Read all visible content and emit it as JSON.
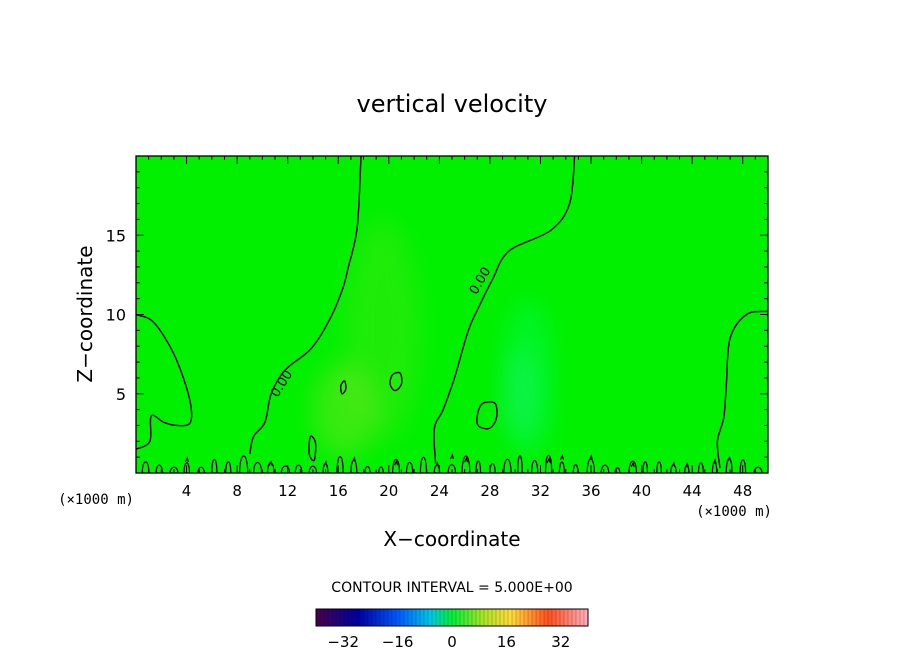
{
  "chart_data": {
    "type": "heatmap",
    "title": "vertical velocity",
    "xlabel": "X−coordinate",
    "ylabel": "Z−coordinate",
    "x_units_left": "(×1000 m)",
    "x_units_right": "(×1000 m)",
    "xlim": [
      0,
      50
    ],
    "ylim": [
      0,
      20
    ],
    "x_ticks": [
      4,
      8,
      12,
      16,
      20,
      24,
      28,
      32,
      36,
      40,
      44,
      48
    ],
    "x_tick_labels": [
      "4",
      "8",
      "12",
      "16",
      "20",
      "24",
      "28",
      "32",
      "36",
      "40",
      "44",
      "48"
    ],
    "y_ticks": [
      5,
      10,
      15
    ],
    "y_tick_labels": [
      "5",
      "10",
      "15"
    ],
    "contour_label": "0.00",
    "contour_interval_text": "CONTOUR INTERVAL = 5.000E+00",
    "colorbar": {
      "range": [
        -40,
        40
      ],
      "ticks": [
        -32,
        -16,
        0,
        16,
        32
      ],
      "tick_labels": [
        "−32",
        "−16",
        "0",
        "16",
        "32"
      ]
    },
    "zero_contours": [
      [
        [
          0,
          10.0
        ],
        [
          1.4,
          9.5
        ],
        [
          3.0,
          7.5
        ],
        [
          4.2,
          4.8
        ],
        [
          4.3,
          3.2
        ],
        [
          3.2,
          3.0
        ],
        [
          2.2,
          3.2
        ],
        [
          1.2,
          3.6
        ],
        [
          1.1,
          2.0
        ],
        [
          0,
          1.5
        ]
      ],
      [
        [
          17.8,
          20
        ],
        [
          17.5,
          15.5
        ],
        [
          16.8,
          13.0
        ],
        [
          16.3,
          11.5
        ],
        [
          15.2,
          9.5
        ],
        [
          13.8,
          7.8
        ],
        [
          11.8,
          6.5
        ],
        [
          10.7,
          5.0
        ],
        [
          10.2,
          3.2
        ],
        [
          9.3,
          2.3
        ],
        [
          9.0,
          1.2
        ]
      ],
      [
        [
          34.7,
          20
        ],
        [
          34.3,
          17.0
        ],
        [
          32.8,
          15.3
        ],
        [
          29.5,
          14.0
        ],
        [
          28.2,
          12.2
        ],
        [
          27.2,
          10.6
        ],
        [
          26.3,
          9.0
        ],
        [
          25.2,
          6.0
        ],
        [
          24.3,
          4.0
        ],
        [
          23.6,
          2.8
        ],
        [
          23.7,
          0.6
        ]
      ],
      [
        [
          50,
          10.2
        ],
        [
          48.3,
          10.0
        ],
        [
          47.0,
          8.5
        ],
        [
          46.7,
          5.5
        ],
        [
          46.5,
          3.5
        ],
        [
          46.0,
          2.0
        ],
        [
          46.2,
          0.3
        ]
      ]
    ],
    "closed_contours": [
      [
        [
          16.2,
          5.5
        ],
        [
          16.5,
          5.8
        ],
        [
          16.6,
          5.3
        ],
        [
          16.3,
          5.0
        ]
      ],
      [
        [
          20.3,
          6.2
        ],
        [
          20.9,
          6.3
        ],
        [
          21.0,
          5.6
        ],
        [
          20.5,
          5.2
        ],
        [
          20.1,
          5.6
        ]
      ],
      [
        [
          27.3,
          4.3
        ],
        [
          28.4,
          4.4
        ],
        [
          28.5,
          3.4
        ],
        [
          27.9,
          2.8
        ],
        [
          27.0,
          3.1
        ]
      ],
      [
        [
          13.8,
          2.3
        ],
        [
          14.2,
          1.9
        ],
        [
          14.1,
          0.8
        ],
        [
          13.7,
          1.2
        ]
      ]
    ],
    "contour_label_positions": [
      {
        "x": 11.8,
        "y": 5.5,
        "angle": -58
      },
      {
        "x": 27.5,
        "y": 12.0,
        "angle": -60
      }
    ],
    "field_blobs": [
      {
        "x": 19.5,
        "y": 9.0,
        "rx": 3.0,
        "ry": 7.0,
        "color": "#70e020",
        "opacity": 0.28
      },
      {
        "x": 16.5,
        "y": 4.0,
        "rx": 2.5,
        "ry": 3.0,
        "color": "#a0e030",
        "opacity": 0.35
      },
      {
        "x": 31.0,
        "y": 6.0,
        "rx": 2.0,
        "ry": 5.0,
        "color": "#00ff80",
        "opacity": 0.3
      },
      {
        "x": 30.5,
        "y": 5.0,
        "rx": 1.2,
        "ry": 3.0,
        "color": "#30f0a0",
        "opacity": 0.3
      }
    ],
    "colors": {
      "background_field": "#00f000",
      "contour_line": "#000000"
    }
  }
}
